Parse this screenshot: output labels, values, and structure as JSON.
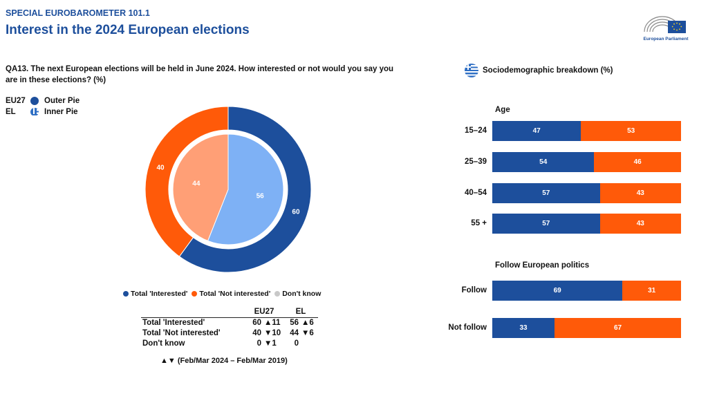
{
  "header": {
    "supertitle": "SPECIAL EUROBAROMETER 101.1",
    "title": "Interest in the 2024 European elections",
    "logo_text": "European Parliament"
  },
  "question": "QA13. The next European elections will be held in June 2024. How interested or not would you say you are in these elections? (%)",
  "pie_legend_keys": [
    {
      "code": "EU27",
      "label": "Outer Pie",
      "icon": "blue-dot"
    },
    {
      "code": "EL",
      "label": "Inner Pie",
      "icon": "greek-flag-icon"
    }
  ],
  "colors": {
    "interested": "#1d4f9c",
    "not_interested": "#ff5a09",
    "inner_interested": "#7eb1f5",
    "inner_not_interested": "#ff9f76",
    "dont_know": "#c8c8c8"
  },
  "category_legend": [
    "Total 'Interested'",
    "Total 'Not interested'",
    "Don't know"
  ],
  "summary_table": {
    "headers": [
      "EU27",
      "EL"
    ],
    "rows": [
      {
        "label": "Total 'Interested'",
        "eu27": "60",
        "eu27_change": "▲11",
        "el": "56",
        "el_change": "▲6"
      },
      {
        "label": "Total 'Not interested'",
        "eu27": "40",
        "eu27_change": "▼10",
        "el": "44",
        "el_change": "▼6"
      },
      {
        "label": "Don't know",
        "eu27": "0",
        "eu27_change": "▼1",
        "el": "0",
        "el_change": ""
      }
    ]
  },
  "footnote": "▲▼ (Feb/Mar 2024 – Feb/Mar 2019)",
  "socio": {
    "title": "Sociodemographic breakdown (%)",
    "age_title": "Age",
    "politics_title": "Follow European politics"
  },
  "chart_data": [
    {
      "type": "pie",
      "name": "EU27",
      "categories": [
        "Total 'Interested'",
        "Total 'Not interested'",
        "Don't know"
      ],
      "values": [
        60,
        40,
        0
      ]
    },
    {
      "type": "pie",
      "name": "EL",
      "categories": [
        "Total 'Interested'",
        "Total 'Not interested'",
        "Don't know"
      ],
      "values": [
        56,
        44,
        0
      ]
    },
    {
      "type": "bar",
      "title": "Age",
      "categories": [
        "15–24",
        "25–39",
        "40–54",
        "55 +"
      ],
      "series": [
        {
          "name": "Total 'Interested'",
          "values": [
            47,
            54,
            57,
            57
          ]
        },
        {
          "name": "Total 'Not interested'",
          "values": [
            53,
            46,
            43,
            43
          ]
        }
      ]
    },
    {
      "type": "bar",
      "title": "Follow European politics",
      "categories": [
        "Follow",
        "Not follow"
      ],
      "series": [
        {
          "name": "Total 'Interested'",
          "values": [
            69,
            33
          ]
        },
        {
          "name": "Total 'Not interested'",
          "values": [
            31,
            67
          ]
        }
      ]
    }
  ]
}
